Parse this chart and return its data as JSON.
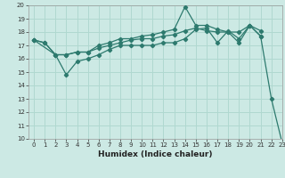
{
  "title": "",
  "xlabel": "Humidex (Indice chaleur)",
  "ylabel": "",
  "bg_color": "#cce9e4",
  "grid_color": "#b0d8d0",
  "line_color": "#2d7a6e",
  "xlim": [
    -0.5,
    23
  ],
  "ylim": [
    10,
    20
  ],
  "xticks": [
    0,
    1,
    2,
    3,
    4,
    5,
    6,
    7,
    8,
    9,
    10,
    11,
    12,
    13,
    14,
    15,
    16,
    17,
    18,
    19,
    20,
    21,
    22,
    23
  ],
  "yticks": [
    10,
    11,
    12,
    13,
    14,
    15,
    16,
    17,
    18,
    19,
    20
  ],
  "line1_x": [
    0,
    1,
    2,
    3,
    4,
    5,
    6,
    7,
    8,
    9,
    10,
    11,
    12,
    13,
    14,
    15,
    16,
    17,
    18,
    19,
    20,
    21,
    22,
    23
  ],
  "line1_y": [
    17.4,
    17.2,
    16.3,
    14.8,
    15.8,
    16.0,
    16.3,
    16.7,
    17.0,
    17.0,
    17.0,
    17.0,
    17.2,
    17.2,
    17.5,
    18.2,
    18.3,
    17.2,
    18.1,
    17.5,
    18.5,
    17.7,
    13.0,
    9.7
  ],
  "line2_x": [
    0,
    1,
    2,
    3,
    4,
    5,
    6,
    7,
    8,
    9,
    10,
    11,
    12,
    13,
    14,
    15,
    16,
    17,
    18,
    19,
    20,
    21
  ],
  "line2_y": [
    17.4,
    17.2,
    16.3,
    16.3,
    16.5,
    16.5,
    16.8,
    17.0,
    17.2,
    17.4,
    17.5,
    17.5,
    17.7,
    17.8,
    18.1,
    18.3,
    18.1,
    18.0,
    18.0,
    18.0,
    18.5,
    18.1
  ],
  "line3_x": [
    0,
    2,
    3,
    4,
    5,
    6,
    7,
    8,
    9,
    10,
    11,
    12,
    13,
    14,
    15,
    16,
    17,
    18,
    19,
    20,
    21
  ],
  "line3_y": [
    17.4,
    16.3,
    16.3,
    16.5,
    16.5,
    17.0,
    17.2,
    17.5,
    17.5,
    17.7,
    17.8,
    18.0,
    18.2,
    19.9,
    18.5,
    18.5,
    18.2,
    18.0,
    17.2,
    18.5,
    17.7
  ],
  "xlabel_fontsize": 6.5,
  "tick_fontsize": 5.0,
  "marker_size": 2.2,
  "linewidth": 0.9
}
